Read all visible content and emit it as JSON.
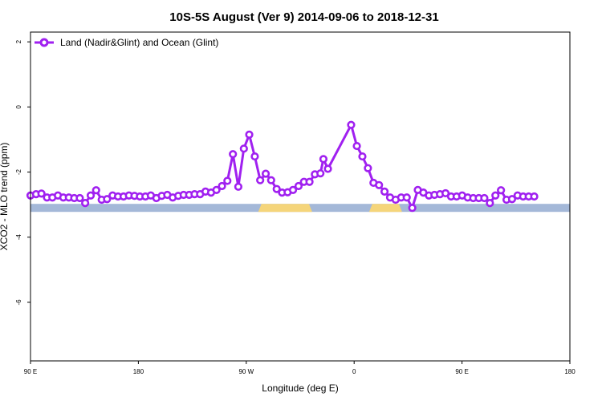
{
  "chart_data": {
    "type": "line",
    "title": "10S-5S August (Ver 9)   2014-09-06 to 2018-12-31",
    "xlabel": "Longitude (deg E)",
    "ylabel": "XCO2 - MLO trend (ppm)",
    "x_axis_wrap_start": 90,
    "xlim": [
      0,
      360
    ],
    "ylim": [
      -7.8,
      2.3
    ],
    "y_ticks": [
      2,
      0,
      -2,
      -4,
      -6
    ],
    "x_ticks": [
      {
        "pos": 0,
        "label": "90 E"
      },
      {
        "pos": 72,
        "label": "180"
      },
      {
        "pos": 144,
        "label": "90 W"
      },
      {
        "pos": 216,
        "label": "0"
      },
      {
        "pos": 288,
        "label": "90 E"
      },
      {
        "pos": 360,
        "label": "180"
      }
    ],
    "legend": {
      "position": "top-left",
      "label": "Land (Nadir&Glint) and Ocean (Glint)"
    },
    "series": [
      {
        "name": "Land (Nadir&Glint) and Ocean (Glint)",
        "color": "#a020f0",
        "points": [
          [
            0,
            -2.72
          ],
          [
            3.7,
            -2.68
          ],
          [
            7.3,
            -2.66
          ],
          [
            11,
            -2.78
          ],
          [
            14.6,
            -2.78
          ],
          [
            18.3,
            -2.72
          ],
          [
            21.9,
            -2.78
          ],
          [
            25.6,
            -2.78
          ],
          [
            29.2,
            -2.8
          ],
          [
            32.9,
            -2.8
          ],
          [
            36.5,
            -2.95
          ],
          [
            40.2,
            -2.72
          ],
          [
            43.8,
            -2.56
          ],
          [
            47.5,
            -2.85
          ],
          [
            51.1,
            -2.83
          ],
          [
            54.8,
            -2.72
          ],
          [
            58.4,
            -2.75
          ],
          [
            62.1,
            -2.75
          ],
          [
            65.7,
            -2.72
          ],
          [
            69.4,
            -2.73
          ],
          [
            73,
            -2.75
          ],
          [
            76.7,
            -2.75
          ],
          [
            80.3,
            -2.72
          ],
          [
            84,
            -2.8
          ],
          [
            87.6,
            -2.73
          ],
          [
            91.3,
            -2.7
          ],
          [
            94.9,
            -2.78
          ],
          [
            98.6,
            -2.73
          ],
          [
            102.2,
            -2.7
          ],
          [
            105.9,
            -2.7
          ],
          [
            109.5,
            -2.68
          ],
          [
            113.2,
            -2.68
          ],
          [
            116.8,
            -2.6
          ],
          [
            120.5,
            -2.63
          ],
          [
            124.1,
            -2.55
          ],
          [
            127.8,
            -2.43
          ],
          [
            131.4,
            -2.27
          ],
          [
            135.1,
            -1.45
          ],
          [
            138.7,
            -2.45
          ],
          [
            142.4,
            -1.28
          ],
          [
            146,
            -0.85
          ],
          [
            149.7,
            -1.52
          ],
          [
            153.3,
            -2.25
          ],
          [
            157,
            -2.05
          ],
          [
            160.6,
            -2.25
          ],
          [
            164.3,
            -2.52
          ],
          [
            167.9,
            -2.63
          ],
          [
            171.6,
            -2.62
          ],
          [
            175.2,
            -2.55
          ],
          [
            178.9,
            -2.43
          ],
          [
            182.5,
            -2.3
          ],
          [
            186.2,
            -2.3
          ],
          [
            189.8,
            -2.07
          ],
          [
            193.5,
            -2.04
          ],
          [
            195.5,
            -1.6
          ],
          [
            198.5,
            -1.9
          ],
          [
            214,
            -0.55
          ],
          [
            217.8,
            -1.2
          ],
          [
            221.5,
            -1.52
          ],
          [
            225.2,
            -1.88
          ],
          [
            228.9,
            -2.33
          ],
          [
            232.6,
            -2.4
          ],
          [
            236.3,
            -2.6
          ],
          [
            240,
            -2.78
          ],
          [
            243.7,
            -2.85
          ],
          [
            247.4,
            -2.78
          ],
          [
            251.1,
            -2.78
          ],
          [
            254.8,
            -3.1
          ],
          [
            258.5,
            -2.55
          ],
          [
            262.2,
            -2.63
          ],
          [
            265.9,
            -2.72
          ],
          [
            269.6,
            -2.7
          ],
          [
            273.3,
            -2.68
          ],
          [
            277,
            -2.65
          ],
          [
            280.7,
            -2.75
          ],
          [
            284.4,
            -2.75
          ],
          [
            288.1,
            -2.72
          ],
          [
            291.8,
            -2.78
          ],
          [
            295.5,
            -2.8
          ],
          [
            299.2,
            -2.8
          ],
          [
            302.9,
            -2.8
          ],
          [
            306.6,
            -2.95
          ],
          [
            310.3,
            -2.72
          ],
          [
            314,
            -2.56
          ],
          [
            317.7,
            -2.85
          ],
          [
            321.4,
            -2.83
          ],
          [
            325.1,
            -2.72
          ],
          [
            328.8,
            -2.75
          ],
          [
            332.5,
            -2.75
          ],
          [
            336.2,
            -2.75
          ]
        ]
      }
    ],
    "land_ocean_band": {
      "y": -3.1,
      "ocean_color": "#a4b8d8",
      "land_color": "#f5d57a",
      "land_segments": [
        [
          152,
          188
        ],
        [
          226,
          248
        ]
      ]
    }
  }
}
